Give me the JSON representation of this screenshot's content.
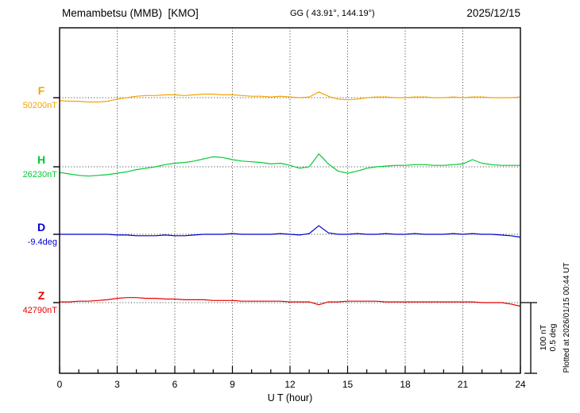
{
  "header": {
    "station": "Memambetsu (MMB)  [KMO]",
    "coordinates": "GG ( 43.91°, 144.19°)",
    "date": "2025/12/15"
  },
  "axis": {
    "xlabel": "U T (hour)",
    "xticks": [
      "0",
      "3",
      "6",
      "9",
      "12",
      "15",
      "18",
      "21",
      "24"
    ]
  },
  "scale_bar": {
    "label_nt": "100 nT",
    "label_deg": "0.5 deg"
  },
  "plotted_at": "Plotted at 2026/01/15 00:44 UT",
  "chart_data": {
    "type": "line",
    "title": "Memambetsu (MMB)  [KMO]",
    "subtitle": "GG ( 43.91°, 144.19°)",
    "date": "2025/12/15",
    "xlabel": "U T (hour)",
    "xlim": [
      0,
      24
    ],
    "xticks_major": [
      0,
      3,
      6,
      9,
      12,
      15,
      18,
      21,
      24
    ],
    "gridline_hours": [
      3,
      6,
      9,
      12,
      15,
      18,
      21
    ],
    "x_step_hours": 0.5,
    "scale_reference": {
      "nT": 100,
      "deg": 0.5
    },
    "legend_position": "left",
    "grid": "dotted-vertical-and-baselines",
    "series": [
      {
        "name": "F",
        "unit": "nT",
        "color": "#f5a400",
        "baseline_value": 50200,
        "baseline_label": "50200nT",
        "offsets": [
          -4,
          -5,
          -5,
          -6,
          -6,
          -5,
          -2,
          0,
          2,
          3,
          3,
          4,
          4,
          3,
          4,
          5,
          5,
          4,
          4,
          3,
          2,
          2,
          1,
          2,
          1,
          0,
          1,
          8,
          2,
          -2,
          -3,
          -2,
          0,
          1,
          1,
          0,
          0,
          1,
          1,
          0,
          0,
          1,
          0,
          1,
          1,
          0,
          0,
          0,
          1
        ]
      },
      {
        "name": "H",
        "unit": "nT",
        "color": "#00cc33",
        "baseline_value": 26230,
        "baseline_label": "26230nT",
        "offsets": [
          -8,
          -10,
          -12,
          -13,
          -12,
          -11,
          -9,
          -7,
          -4,
          -2,
          0,
          3,
          5,
          6,
          8,
          11,
          14,
          13,
          10,
          8,
          7,
          6,
          4,
          5,
          2,
          -2,
          0,
          18,
          4,
          -6,
          -9,
          -6,
          -2,
          0,
          1,
          2,
          2,
          3,
          3,
          2,
          2,
          3,
          4,
          10,
          5,
          3,
          2,
          2,
          2
        ]
      },
      {
        "name": "D",
        "unit": "deg",
        "color": "#0000cc",
        "baseline_value": -9.4,
        "baseline_label": "-9.4deg",
        "offsets": [
          0,
          0,
          0,
          0,
          0,
          0,
          -0.005,
          -0.005,
          -0.01,
          -0.01,
          -0.01,
          -0.005,
          -0.01,
          -0.01,
          -0.005,
          0,
          0,
          0,
          0.005,
          0,
          0,
          0,
          0,
          0.005,
          0,
          -0.005,
          0.005,
          0.06,
          0.01,
          0,
          0,
          0.005,
          0,
          0,
          0.005,
          0,
          0,
          0.005,
          0,
          0,
          0,
          0.005,
          0,
          0.005,
          0,
          0,
          -0.005,
          -0.01,
          -0.02
        ]
      },
      {
        "name": "Z",
        "unit": "nT",
        "color": "#e60000",
        "baseline_value": 42790,
        "baseline_label": "42790nT",
        "offsets": [
          1,
          1,
          2,
          2,
          3,
          4,
          6,
          7,
          7,
          6,
          6,
          5,
          5,
          4,
          4,
          4,
          3,
          3,
          3,
          2,
          2,
          2,
          2,
          2,
          1,
          1,
          1,
          -3,
          1,
          1,
          2,
          2,
          2,
          2,
          1,
          1,
          1,
          1,
          1,
          1,
          1,
          1,
          1,
          1,
          0,
          0,
          0,
          -2,
          -5
        ]
      }
    ]
  }
}
